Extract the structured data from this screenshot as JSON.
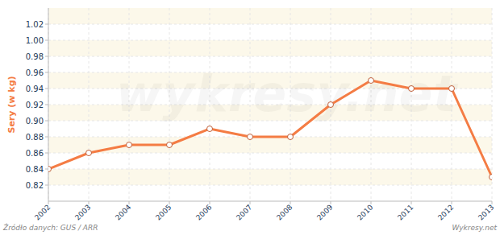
{
  "chart_data": {
    "type": "line",
    "ylabel": "Sery (w kg)",
    "source": "Źródło danych: GUS / ARR",
    "credit": "Wykresy.net",
    "watermark": "wykresy.net",
    "categories": [
      "2002",
      "2003",
      "2004",
      "2005",
      "2006",
      "2007",
      "2008",
      "2009",
      "2010",
      "2011",
      "2012",
      "2013"
    ],
    "values": [
      0.84,
      0.86,
      0.87,
      0.87,
      0.89,
      0.88,
      0.88,
      0.92,
      0.95,
      0.94,
      0.94,
      0.83
    ],
    "color": "#f47c44",
    "marker": "circle",
    "ylim": [
      0.8,
      1.04
    ],
    "yticks": [
      0.82,
      0.84,
      0.86,
      0.88,
      {
        "value": 0.9,
        "label": "0.90"
      },
      0.92,
      0.94,
      0.96,
      0.98,
      {
        "value": 1,
        "label": "1.00"
      },
      1.02
    ],
    "grid": true
  }
}
